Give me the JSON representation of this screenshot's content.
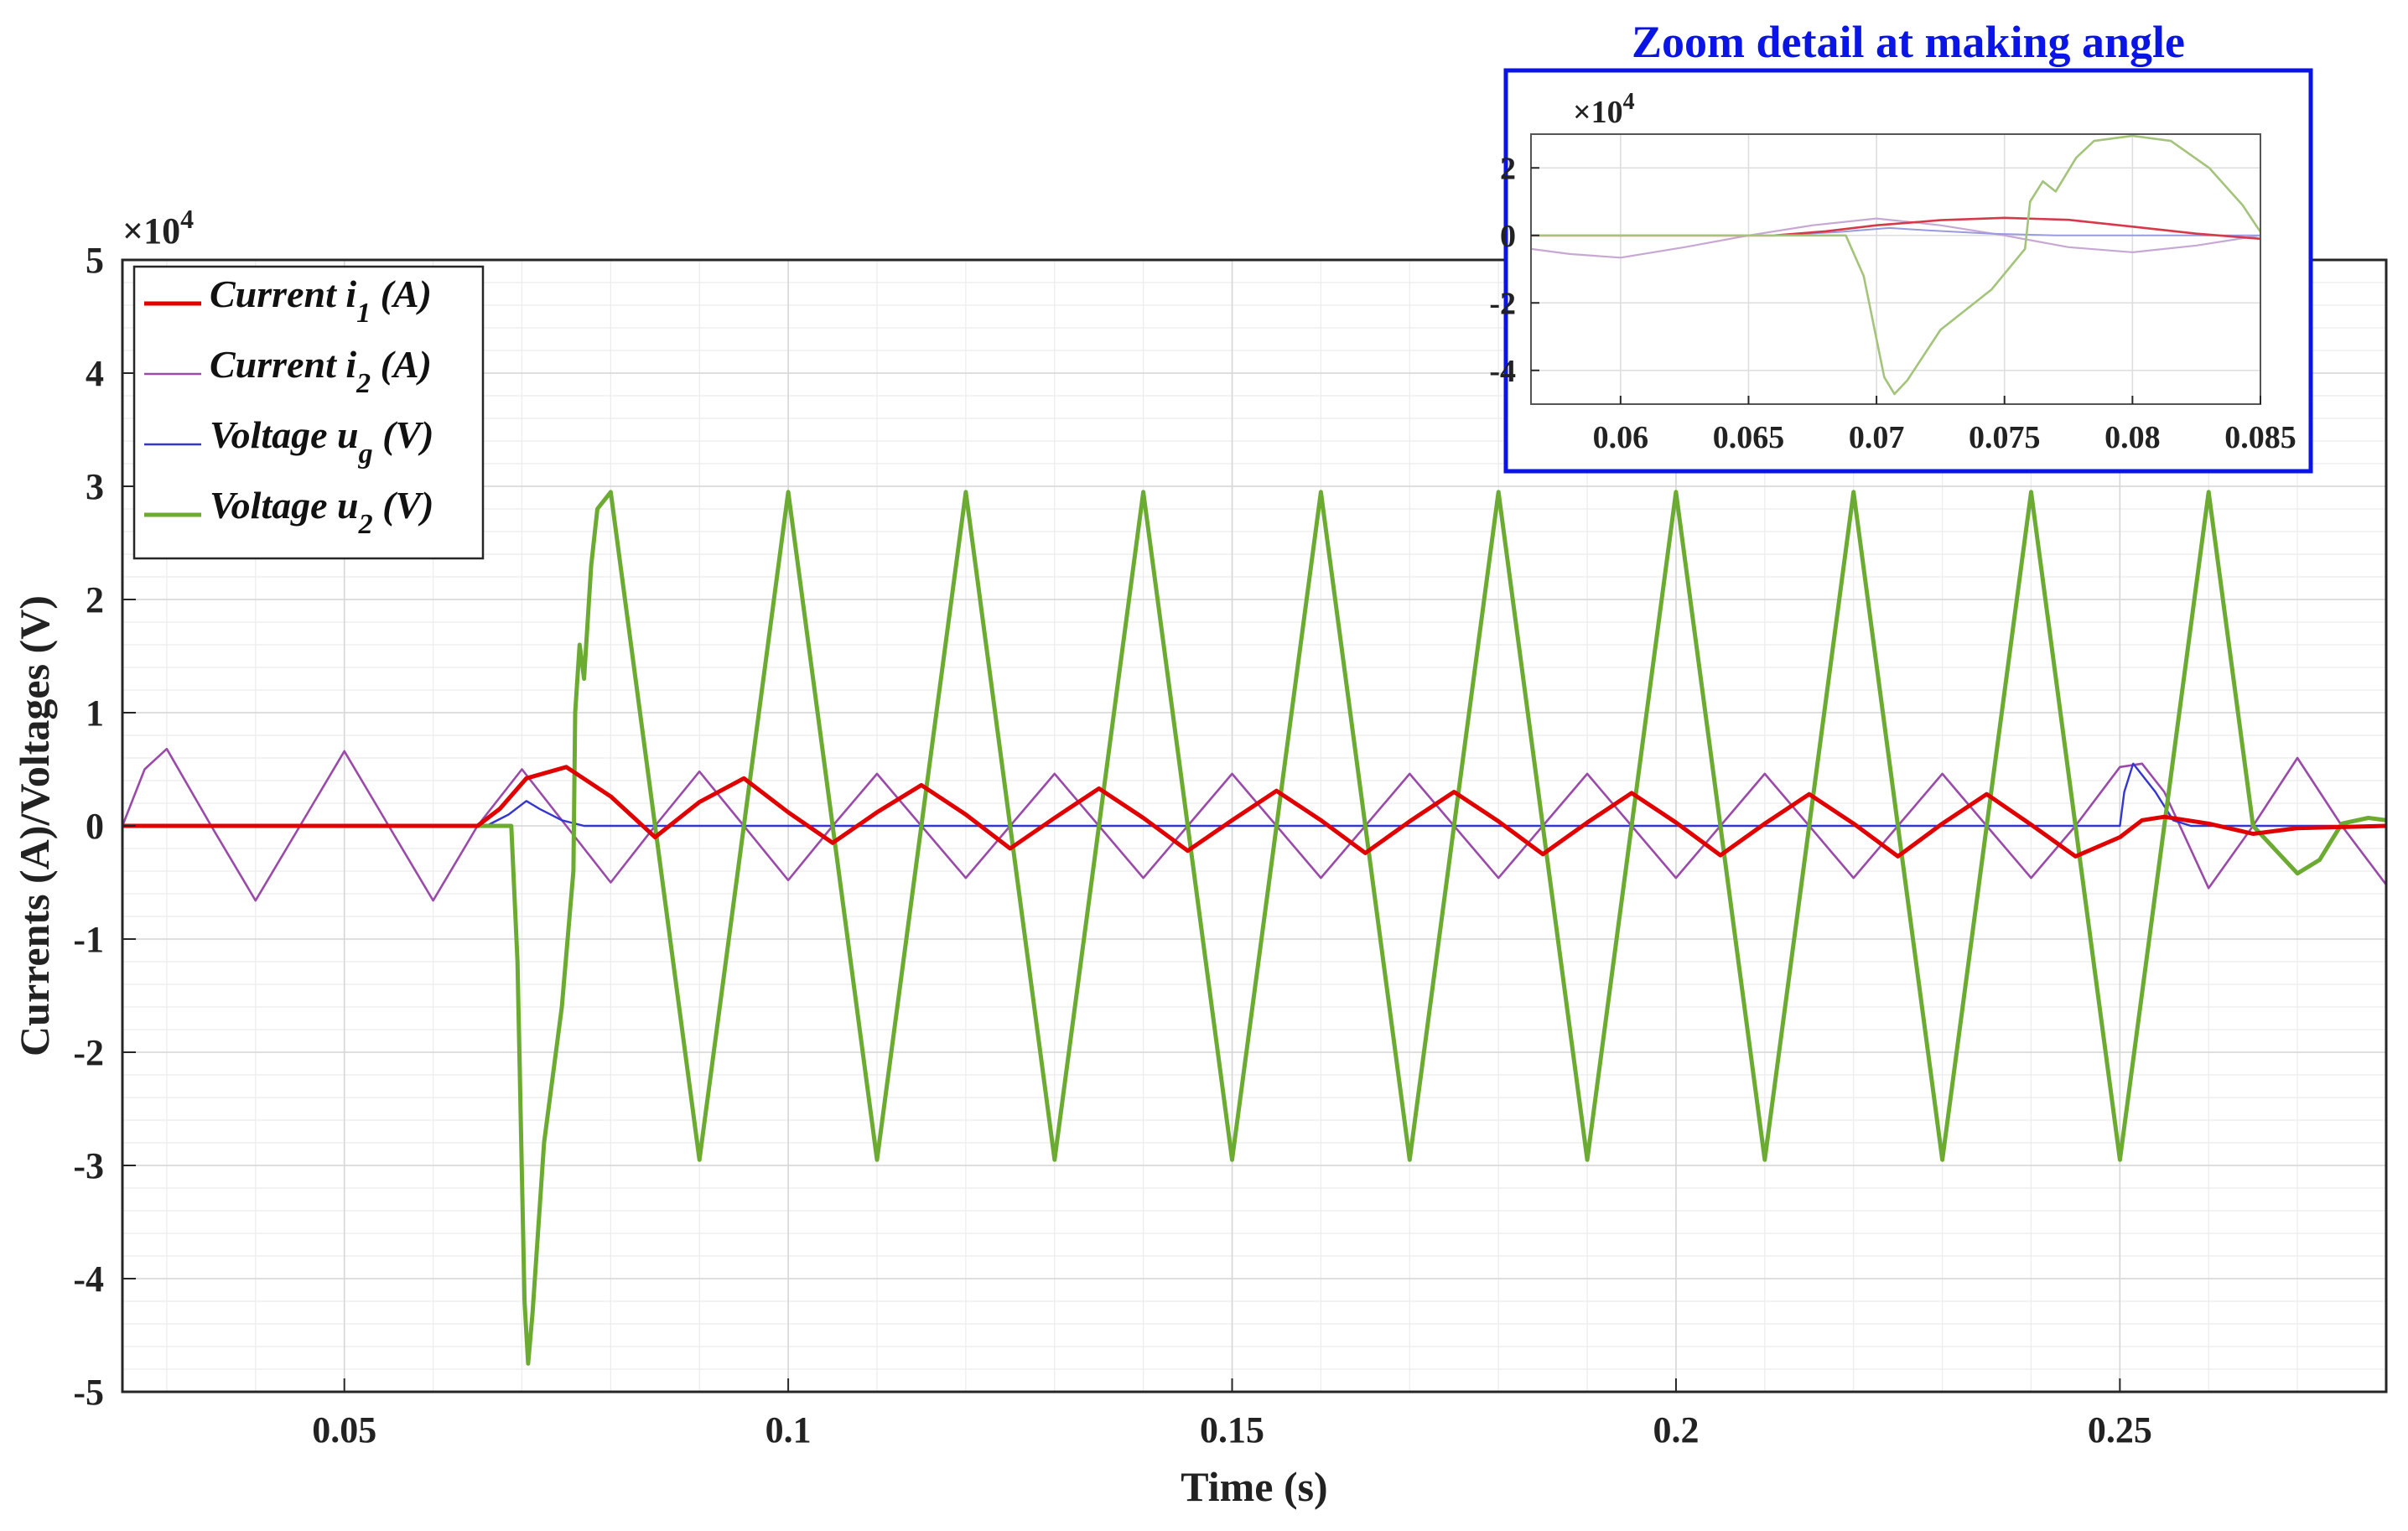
{
  "chart_data": [
    {
      "type": "line",
      "title": "",
      "xlabel": "Time (s)",
      "ylabel": "Currents (A)/Voltages (V)",
      "y_multiplier_label": "×10",
      "y_multiplier_exp": "4",
      "xlim": [
        0.025,
        0.28
      ],
      "ylim": [
        -5,
        5
      ],
      "y_unit_scale": 10000,
      "xticks": [
        0.05,
        0.1,
        0.15,
        0.2,
        0.25
      ],
      "xtick_labels": [
        "0.05",
        "0.1",
        "0.15",
        "0.2",
        "0.25"
      ],
      "yticks": [
        5,
        4,
        3,
        2,
        1,
        0,
        -1,
        -2,
        -3,
        -4,
        -5
      ],
      "ytick_labels": [
        "5",
        "4",
        "3",
        "2",
        "1",
        "0",
        "-1",
        "-2",
        "-3",
        "-4",
        "-5"
      ],
      "grid": true,
      "minor_grid": true,
      "legend_position": "top-left",
      "series": [
        {
          "key": "i1",
          "legend_main": "Current i",
          "legend_sub": "1",
          "legend_tail": " (A)",
          "color": "#e00000",
          "points": [
            [
              0.025,
              0
            ],
            [
              0.065,
              0
            ],
            [
              0.0675,
              0.15
            ],
            [
              0.0705,
              0.42
            ],
            [
              0.075,
              0.52
            ],
            [
              0.08,
              0.26
            ],
            [
              0.085,
              -0.1
            ],
            [
              0.09,
              0.21
            ],
            [
              0.095,
              0.42
            ],
            [
              0.1,
              0.12
            ],
            [
              0.105,
              -0.15
            ],
            [
              0.11,
              0.12
            ],
            [
              0.115,
              0.36
            ],
            [
              0.12,
              0.1
            ],
            [
              0.125,
              -0.2
            ],
            [
              0.13,
              0.07
            ],
            [
              0.135,
              0.33
            ],
            [
              0.14,
              0.07
            ],
            [
              0.145,
              -0.22
            ],
            [
              0.15,
              0.05
            ],
            [
              0.155,
              0.31
            ],
            [
              0.16,
              0.05
            ],
            [
              0.165,
              -0.24
            ],
            [
              0.17,
              0.04
            ],
            [
              0.175,
              0.3
            ],
            [
              0.18,
              0.04
            ],
            [
              0.185,
              -0.25
            ],
            [
              0.19,
              0.03
            ],
            [
              0.195,
              0.29
            ],
            [
              0.2,
              0.03
            ],
            [
              0.205,
              -0.26
            ],
            [
              0.21,
              0.02
            ],
            [
              0.215,
              0.28
            ],
            [
              0.22,
              0.02
            ],
            [
              0.225,
              -0.27
            ],
            [
              0.23,
              0.02
            ],
            [
              0.235,
              0.28
            ],
            [
              0.24,
              0.01
            ],
            [
              0.245,
              -0.27
            ],
            [
              0.25,
              -0.1
            ],
            [
              0.2525,
              0.05
            ],
            [
              0.255,
              0.08
            ],
            [
              0.26,
              0.02
            ],
            [
              0.265,
              -0.07
            ],
            [
              0.27,
              -0.02
            ],
            [
              0.28,
              0
            ]
          ]
        },
        {
          "key": "i2",
          "legend_main": "Current i",
          "legend_sub": "2",
          "legend_tail": " (A)",
          "color": "#9a4aa8",
          "points": [
            [
              0.025,
              0
            ],
            [
              0.0275,
              0.5
            ],
            [
              0.03,
              0.68
            ],
            [
              0.035,
              0
            ],
            [
              0.04,
              -0.66
            ],
            [
              0.045,
              0
            ],
            [
              0.05,
              0.66
            ],
            [
              0.055,
              0
            ],
            [
              0.06,
              -0.66
            ],
            [
              0.065,
              0
            ],
            [
              0.07,
              0.5
            ],
            [
              0.075,
              0
            ],
            [
              0.08,
              -0.5
            ],
            [
              0.085,
              0
            ],
            [
              0.09,
              0.48
            ],
            [
              0.095,
              0
            ],
            [
              0.1,
              -0.48
            ],
            [
              0.105,
              0
            ],
            [
              0.11,
              0.46
            ],
            [
              0.115,
              0
            ],
            [
              0.12,
              -0.46
            ],
            [
              0.125,
              0
            ],
            [
              0.13,
              0.46
            ],
            [
              0.135,
              0
            ],
            [
              0.14,
              -0.46
            ],
            [
              0.145,
              0
            ],
            [
              0.15,
              0.46
            ],
            [
              0.155,
              0
            ],
            [
              0.16,
              -0.46
            ],
            [
              0.165,
              0
            ],
            [
              0.17,
              0.46
            ],
            [
              0.175,
              0
            ],
            [
              0.18,
              -0.46
            ],
            [
              0.185,
              0
            ],
            [
              0.19,
              0.46
            ],
            [
              0.195,
              0
            ],
            [
              0.2,
              -0.46
            ],
            [
              0.205,
              0
            ],
            [
              0.21,
              0.46
            ],
            [
              0.215,
              0
            ],
            [
              0.22,
              -0.46
            ],
            [
              0.225,
              0
            ],
            [
              0.23,
              0.46
            ],
            [
              0.235,
              0
            ],
            [
              0.24,
              -0.46
            ],
            [
              0.245,
              0
            ],
            [
              0.25,
              0.52
            ],
            [
              0.2525,
              0.55
            ],
            [
              0.255,
              0.3
            ],
            [
              0.26,
              -0.55
            ],
            [
              0.265,
              0
            ],
            [
              0.27,
              0.6
            ],
            [
              0.275,
              0
            ],
            [
              0.28,
              -0.52
            ]
          ]
        },
        {
          "key": "ug",
          "legend_main": "Voltage u",
          "legend_sub": "g",
          "legend_tail": " (V)",
          "color": "#3535d0",
          "points": [
            [
              0.025,
              0
            ],
            [
              0.066,
              0
            ],
            [
              0.0685,
              0.1
            ],
            [
              0.0705,
              0.22
            ],
            [
              0.072,
              0.15
            ],
            [
              0.0745,
              0.05
            ],
            [
              0.077,
              0
            ],
            [
              0.25,
              0
            ],
            [
              0.2505,
              0.3
            ],
            [
              0.2515,
              0.55
            ],
            [
              0.254,
              0.3
            ],
            [
              0.256,
              0.05
            ],
            [
              0.258,
              0
            ],
            [
              0.28,
              0
            ]
          ]
        },
        {
          "key": "u2",
          "legend_main": "Voltage u",
          "legend_sub": "2",
          "legend_tail": " (V)",
          "color": "#6cab32",
          "points": [
            [
              0.025,
              0
            ],
            [
              0.0688,
              0
            ],
            [
              0.0695,
              -1.2
            ],
            [
              0.0703,
              -4.2
            ],
            [
              0.0707,
              -4.75
            ],
            [
              0.0712,
              -4.3
            ],
            [
              0.0725,
              -2.8
            ],
            [
              0.0745,
              -1.6
            ],
            [
              0.0758,
              -0.4
            ],
            [
              0.076,
              1.0
            ],
            [
              0.0765,
              1.6
            ],
            [
              0.077,
              1.3
            ],
            [
              0.0778,
              2.3
            ],
            [
              0.0785,
              2.8
            ],
            [
              0.08,
              2.95
            ],
            [
              0.085,
              0
            ],
            [
              0.09,
              -2.95
            ],
            [
              0.095,
              0
            ],
            [
              0.1,
              2.95
            ],
            [
              0.105,
              0
            ],
            [
              0.11,
              -2.95
            ],
            [
              0.115,
              0
            ],
            [
              0.12,
              2.95
            ],
            [
              0.125,
              0
            ],
            [
              0.13,
              -2.95
            ],
            [
              0.135,
              0
            ],
            [
              0.14,
              2.95
            ],
            [
              0.145,
              0
            ],
            [
              0.15,
              -2.95
            ],
            [
              0.155,
              0
            ],
            [
              0.16,
              2.95
            ],
            [
              0.165,
              0
            ],
            [
              0.17,
              -2.95
            ],
            [
              0.175,
              0
            ],
            [
              0.18,
              2.95
            ],
            [
              0.185,
              0
            ],
            [
              0.19,
              -2.95
            ],
            [
              0.195,
              0
            ],
            [
              0.2,
              2.95
            ],
            [
              0.205,
              0
            ],
            [
              0.21,
              -2.95
            ],
            [
              0.215,
              0
            ],
            [
              0.22,
              2.95
            ],
            [
              0.225,
              0
            ],
            [
              0.23,
              -2.95
            ],
            [
              0.235,
              0
            ],
            [
              0.24,
              2.95
            ],
            [
              0.245,
              0
            ],
            [
              0.25,
              -2.95
            ],
            [
              0.255,
              0
            ],
            [
              0.26,
              2.95
            ],
            [
              0.265,
              0
            ],
            [
              0.27,
              -0.42
            ],
            [
              0.2725,
              -0.3
            ],
            [
              0.275,
              0.02
            ],
            [
              0.278,
              0.07
            ],
            [
              0.28,
              0.05
            ]
          ]
        }
      ]
    },
    {
      "type": "line",
      "title": "Zoom detail at making angle",
      "y_multiplier_label": "×10",
      "y_multiplier_exp": "4",
      "xlim": [
        0.0565,
        0.085
      ],
      "ylim": [
        -5,
        3
      ],
      "y_unit_scale": 10000,
      "xticks": [
        0.06,
        0.065,
        0.07,
        0.075,
        0.08,
        0.085
      ],
      "xtick_labels": [
        "0.06",
        "0.065",
        "0.07",
        "0.075",
        "0.08",
        "0.085"
      ],
      "yticks": [
        2,
        0,
        -2,
        -4
      ],
      "ytick_labels": [
        "2",
        "0",
        "-2",
        "-4"
      ],
      "grid": true,
      "series": [
        {
          "key": "i1",
          "color": "#d43a4a",
          "points": [
            [
              0.0565,
              0
            ],
            [
              0.066,
              0
            ],
            [
              0.068,
              0.12
            ],
            [
              0.07,
              0.3
            ],
            [
              0.0725,
              0.45
            ],
            [
              0.075,
              0.52
            ],
            [
              0.0775,
              0.46
            ],
            [
              0.08,
              0.26
            ],
            [
              0.0825,
              0.05
            ],
            [
              0.085,
              -0.1
            ]
          ]
        },
        {
          "key": "i2",
          "color": "#c7a8d4",
          "points": [
            [
              0.0565,
              -0.4
            ],
            [
              0.058,
              -0.55
            ],
            [
              0.06,
              -0.66
            ],
            [
              0.0625,
              -0.35
            ],
            [
              0.065,
              0
            ],
            [
              0.0675,
              0.3
            ],
            [
              0.07,
              0.5
            ],
            [
              0.0725,
              0.3
            ],
            [
              0.075,
              0
            ],
            [
              0.0775,
              -0.35
            ],
            [
              0.08,
              -0.5
            ],
            [
              0.0825,
              -0.3
            ],
            [
              0.085,
              0
            ]
          ]
        },
        {
          "key": "ug",
          "color": "#9a9ae0",
          "points": [
            [
              0.0565,
              0
            ],
            [
              0.066,
              0
            ],
            [
              0.0685,
              0.1
            ],
            [
              0.0705,
              0.22
            ],
            [
              0.072,
              0.15
            ],
            [
              0.0745,
              0.05
            ],
            [
              0.077,
              0
            ],
            [
              0.085,
              0
            ]
          ]
        },
        {
          "key": "u2",
          "color": "#a3c47a",
          "points": [
            [
              0.0565,
              0
            ],
            [
              0.0688,
              0
            ],
            [
              0.0695,
              -1.2
            ],
            [
              0.0703,
              -4.2
            ],
            [
              0.0707,
              -4.7
            ],
            [
              0.0712,
              -4.3
            ],
            [
              0.0725,
              -2.8
            ],
            [
              0.0745,
              -1.6
            ],
            [
              0.0758,
              -0.4
            ],
            [
              0.076,
              1.0
            ],
            [
              0.0765,
              1.6
            ],
            [
              0.077,
              1.3
            ],
            [
              0.0778,
              2.3
            ],
            [
              0.0785,
              2.8
            ],
            [
              0.08,
              2.95
            ],
            [
              0.0815,
              2.8
            ],
            [
              0.083,
              2.0
            ],
            [
              0.0843,
              0.9
            ],
            [
              0.085,
              0.1
            ]
          ]
        }
      ]
    }
  ]
}
